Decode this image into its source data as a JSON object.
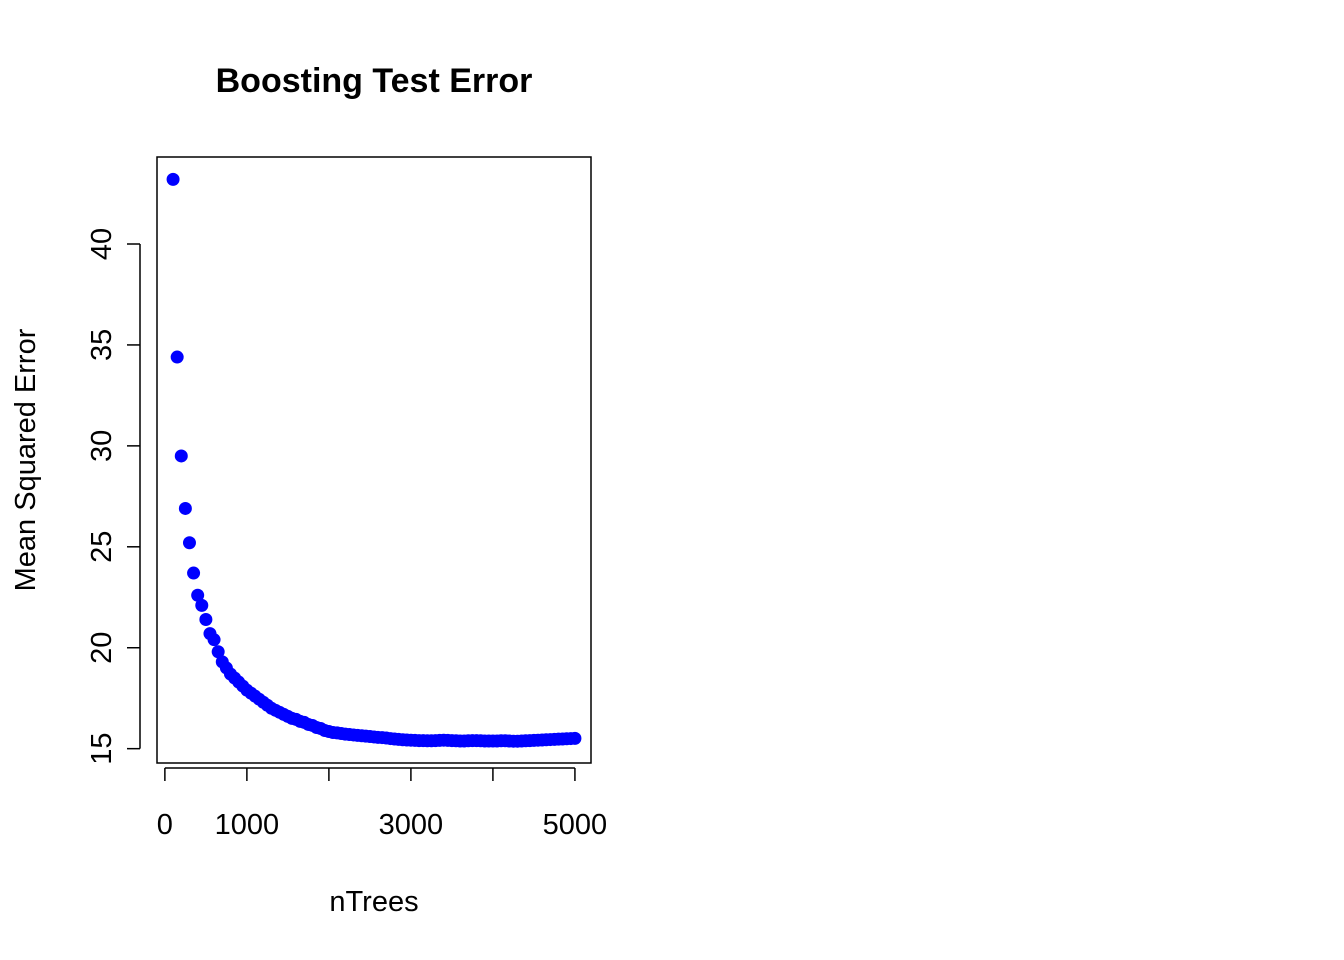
{
  "chart_data": {
    "type": "scatter",
    "title": "Boosting Test Error",
    "x_label": "nTrees",
    "y_label": "Mean Squared Error",
    "color": "#0000ff",
    "x": [
      100,
      150,
      200,
      250,
      300,
      350,
      400,
      450,
      500,
      550,
      600,
      650,
      700,
      750,
      800,
      850,
      900,
      950,
      1000,
      1050,
      1100,
      1150,
      1200,
      1250,
      1300,
      1350,
      1400,
      1450,
      1500,
      1550,
      1600,
      1650,
      1700,
      1750,
      1800,
      1850,
      1900,
      1950,
      2000,
      2050,
      2100,
      2150,
      2200,
      2250,
      2300,
      2350,
      2400,
      2450,
      2500,
      2550,
      2600,
      2650,
      2700,
      2750,
      2800,
      2850,
      2900,
      2950,
      3000,
      3050,
      3100,
      3150,
      3200,
      3250,
      3300,
      3350,
      3400,
      3450,
      3500,
      3550,
      3600,
      3650,
      3700,
      3750,
      3800,
      3850,
      3900,
      3950,
      4000,
      4050,
      4100,
      4150,
      4200,
      4250,
      4300,
      4350,
      4400,
      4450,
      4500,
      4550,
      4600,
      4650,
      4700,
      4750,
      4800,
      4850,
      4900,
      4950,
      5000
    ],
    "values": [
      43.2,
      34.4,
      29.5,
      26.9,
      25.2,
      23.7,
      22.6,
      22.1,
      21.4,
      20.7,
      20.4,
      19.8,
      19.3,
      19.0,
      18.7,
      18.5,
      18.3,
      18.1,
      17.9,
      17.75,
      17.6,
      17.45,
      17.3,
      17.15,
      17.0,
      16.9,
      16.8,
      16.7,
      16.6,
      16.5,
      16.45,
      16.35,
      16.3,
      16.2,
      16.15,
      16.05,
      16.0,
      15.9,
      15.85,
      15.8,
      15.78,
      15.75,
      15.72,
      15.7,
      15.68,
      15.66,
      15.64,
      15.62,
      15.6,
      15.58,
      15.56,
      15.55,
      15.53,
      15.5,
      15.48,
      15.46,
      15.44,
      15.43,
      15.42,
      15.41,
      15.4,
      15.4,
      15.39,
      15.39,
      15.4,
      15.41,
      15.42,
      15.41,
      15.4,
      15.39,
      15.38,
      15.38,
      15.39,
      15.4,
      15.4,
      15.39,
      15.38,
      15.38,
      15.38,
      15.38,
      15.39,
      15.39,
      15.38,
      15.37,
      15.37,
      15.38,
      15.39,
      15.4,
      15.41,
      15.42,
      15.43,
      15.44,
      15.45,
      15.46,
      15.47,
      15.48,
      15.49,
      15.5,
      15.51
    ],
    "xlim": [
      -96,
      5196
    ],
    "ylim": [
      14.29,
      44.31
    ],
    "xticks": [
      0,
      1000,
      {
        "value": 2000,
        "label": null
      },
      3000,
      {
        "value": 4000,
        "label": null
      },
      5000
    ],
    "yticks": [
      15,
      20,
      25,
      30,
      35,
      40
    ]
  }
}
